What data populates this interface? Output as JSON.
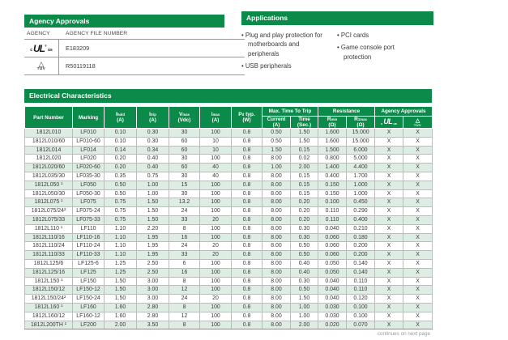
{
  "colors": {
    "green": "#0C8A4A",
    "row_alt": "#DEEDE4"
  },
  "icons": {
    "ul_c": "c",
    "ul_main": "UL",
    "ul_reg": "®",
    "ul_us": "us",
    "tuv_triangle": "△",
    "tuv_label": "TÜV"
  },
  "agency_approvals": {
    "title": "Agency Approvals",
    "col_agency": "AGENCY",
    "col_file": "AGENCY FILE NUMBER",
    "rows": [
      {
        "agency": "cULus",
        "file_number": "E183209"
      },
      {
        "agency": "TÜV",
        "file_number": "R50119118"
      }
    ]
  },
  "applications": {
    "title": "Applications",
    "col1": [
      "Plug and play protection for motherboards and peripherals",
      "USB peripherals"
    ],
    "col2": [
      "PCI cards",
      "Game console port protection"
    ]
  },
  "electrical": {
    "title": "Electrical Characteristics",
    "groups": {
      "trip": "Max. Time To Trip",
      "resistance": "Resistance",
      "agency": "Agency Approvals"
    },
    "cols": {
      "part_number": "Part Number",
      "marking": "Marking",
      "ihold": {
        "base": "I",
        "sub": "hold",
        "unit": "(A)"
      },
      "itrip": {
        "base": "I",
        "sub": "trip",
        "unit": "(A)"
      },
      "vmax": {
        "base": "V",
        "sub": "max",
        "unit": "(Vdc)"
      },
      "imax": {
        "base": "I",
        "sub": "max",
        "unit": "(A)"
      },
      "pd": {
        "base": "P",
        "sub": "d",
        "rest": " typ.",
        "unit": "(W)"
      },
      "current": {
        "line1": "Current",
        "line2": "(A)"
      },
      "time": {
        "line1": "Time",
        "line2": "(Sec.)"
      },
      "rmin": {
        "base": "R",
        "sub": "min",
        "unit": "(Ω)"
      },
      "rmax": {
        "base": "R",
        "sub": "1max",
        "unit": "(Ω)"
      }
    },
    "rows": [
      [
        "1812L010",
        "LF010",
        "0.10",
        "0.30",
        "30",
        "100",
        "0.8",
        "0.50",
        "1.50",
        "1.600",
        "15.000",
        "X",
        "X"
      ],
      [
        "1812L010/60",
        "LF010-60",
        "0.10",
        "0.30",
        "60",
        "10",
        "0.8",
        "0.50",
        "1.50",
        "1.600",
        "15.000",
        "X",
        "X"
      ],
      [
        "1812L014",
        "LF014",
        "0.14",
        "0.34",
        "60",
        "10",
        "0.8",
        "1.50",
        "0.15",
        "1.500",
        "6.000",
        "X",
        "X"
      ],
      [
        "1812L020",
        "LF020",
        "0.20",
        "0.40",
        "30",
        "100",
        "0.8",
        "8.00",
        "0.02",
        "0.800",
        "5.000",
        "X",
        "X"
      ],
      [
        "1812L020/60",
        "LF020-60",
        "0.20",
        "0.40",
        "60",
        "40",
        "0.8",
        "1.00",
        "2.00",
        "1.400",
        "4.400",
        "X",
        "X"
      ],
      [
        "1812L035/30",
        "LF035-30",
        "0.35",
        "0.75",
        "30",
        "40",
        "0.8",
        "8.00",
        "0.15",
        "0.400",
        "1.700",
        "X",
        "X"
      ],
      [
        "1812L050 ¹",
        "LF050",
        "0.50",
        "1.00",
        "15",
        "100",
        "0.8",
        "8.00",
        "0.15",
        "0.150",
        "1.000",
        "X",
        "X"
      ],
      [
        "1812L050/30",
        "LF050-30",
        "0.50",
        "1.00",
        "30",
        "100",
        "0.8",
        "8.00",
        "0.15",
        "0.150",
        "1.000",
        "X",
        "X"
      ],
      [
        "1812L075 ¹",
        "LF075",
        "0.75",
        "1.50",
        "13.2",
        "100",
        "0.8",
        "8.00",
        "0.20",
        "0.100",
        "0.450",
        "X",
        "X"
      ],
      [
        "1812L075/24²",
        "LF075-24",
        "0.75",
        "1.50",
        "24",
        "100",
        "0.8",
        "8.00",
        "0.20",
        "0.110",
        "0.290",
        "X",
        "X"
      ],
      [
        "1812L075/33",
        "LF075-33",
        "0.75",
        "1.50",
        "33",
        "20",
        "0.8",
        "8.00",
        "0.20",
        "0.110",
        "0.400",
        "X",
        "X"
      ],
      [
        "1812L110 ¹",
        "LF110",
        "1.10",
        "2.20",
        "8",
        "100",
        "0.8",
        "8.00",
        "0.30",
        "0.040",
        "0.210",
        "X",
        "X"
      ],
      [
        "1812L110/16",
        "LF110-16",
        "1.10",
        "1.95",
        "16",
        "100",
        "0.8",
        "8.00",
        "0.30",
        "0.060",
        "0.180",
        "X",
        "X"
      ],
      [
        "1812L110/24",
        "LF110-24",
        "1.10",
        "1.95",
        "24",
        "20",
        "0.8",
        "8.00",
        "0.50",
        "0.060",
        "0.200",
        "X",
        "X"
      ],
      [
        "1812L110/33",
        "LF110-33",
        "1.10",
        "1.95",
        "33",
        "20",
        "0.8",
        "8.00",
        "0.50",
        "0.060",
        "0.200",
        "X",
        "X"
      ],
      [
        "1812L125/6",
        "LF125-6",
        "1.25",
        "2.50",
        "6",
        "100",
        "0.8",
        "8.00",
        "0.40",
        "0.050",
        "0.140",
        "X",
        "X"
      ],
      [
        "1812L125/16",
        "LF125",
        "1.25",
        "2.50",
        "16",
        "100",
        "0.8",
        "8.00",
        "0.40",
        "0.050",
        "0.140",
        "X",
        "X"
      ],
      [
        "1812L150 ¹",
        "LF150",
        "1.50",
        "3.00",
        "8",
        "100",
        "0.8",
        "8.00",
        "0.30",
        "0.040",
        "0.110",
        "X",
        "X"
      ],
      [
        "1812L150/12",
        "LF150-12",
        "1.50",
        "3.00",
        "12",
        "100",
        "0.8",
        "8.00",
        "0.50",
        "0.040",
        "0.110",
        "X",
        "X"
      ],
      [
        "1812L150/24²",
        "LF150-24",
        "1.50",
        "3.00",
        "24",
        "20",
        "0.8",
        "8.00",
        "1.50",
        "0.040",
        "0.120",
        "X",
        "X"
      ],
      [
        "1812L160 ¹",
        "LF160",
        "1.60",
        "2.80",
        "8",
        "100",
        "0.8",
        "8.00",
        "1.00",
        "0.030",
        "0.100",
        "X",
        "X"
      ],
      [
        "1812L160/12",
        "LF160-12",
        "1.60",
        "2.80",
        "12",
        "100",
        "0.8",
        "8.00",
        "1.00",
        "0.030",
        "0.100",
        "X",
        "X"
      ],
      [
        "1812L200TH ¹",
        "LF200",
        "2.00",
        "3.50",
        "8",
        "100",
        "0.8",
        "8.00",
        "2.00",
        "0.020",
        "0.070",
        "X",
        "X"
      ]
    ],
    "continues_note": "continues on next page"
  }
}
